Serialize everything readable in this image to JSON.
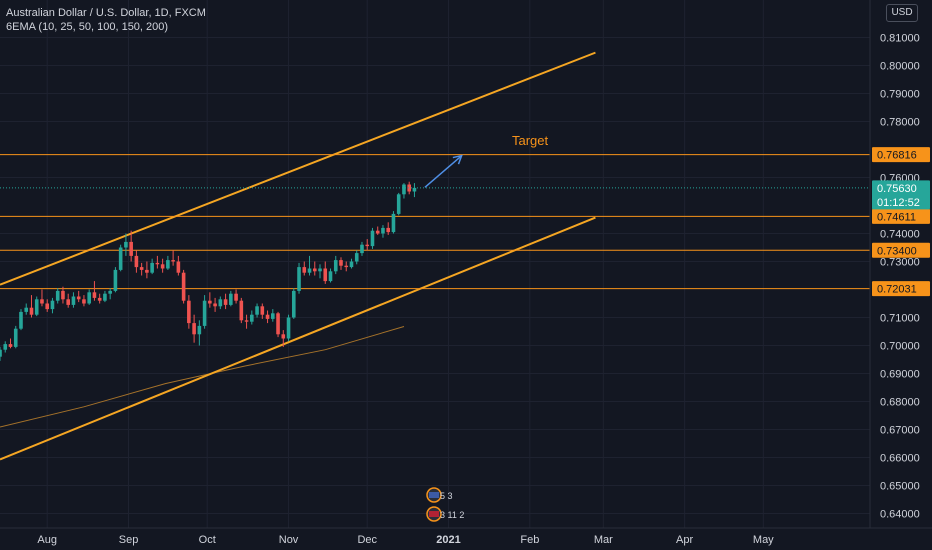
{
  "header": {
    "symbol_title": "Australian Dollar / U.S. Dollar, 1D, FXCM",
    "indicator": "6EMA (10, 25, 50, 100, 150, 200)"
  },
  "currency_button": "USD",
  "annotation_target": "Target",
  "countdown": "01:12:52",
  "events": [
    {
      "icon": "flag-us-icon",
      "count": "5 3"
    },
    {
      "icon": "flag-au-icon",
      "count": "3 11 2"
    }
  ],
  "colors": {
    "background": "#131722",
    "up": "#26a69a",
    "down": "#ef5350",
    "level": "#f7931a",
    "channel": "#f5a623",
    "ema": "#a5722a",
    "arrow": "#4f8fe6",
    "last_price": "#26a69a"
  },
  "chart_data": {
    "type": "candlestick",
    "title": "Australian Dollar / U.S. Dollar, 1D, FXCM",
    "ylim": [
      0.6355,
      0.8205
    ],
    "y_ticks": [
      "0.81000",
      "0.80000",
      "0.79000",
      "0.78000",
      "0.76000",
      "0.74000",
      "0.73000",
      "0.71000",
      "0.70000",
      "0.69000",
      "0.68000",
      "0.67000",
      "0.66000",
      "0.65000",
      "0.64000"
    ],
    "x_ticks": [
      "Aug",
      "Sep",
      "Oct",
      "Nov",
      "Dec",
      "2021",
      "Feb",
      "Mar",
      "Apr",
      "May"
    ],
    "x_tick_dates": [
      "2020-08-01",
      "2020-09-01",
      "2020-10-01",
      "2020-11-01",
      "2020-12-01",
      "2021-01-01",
      "2021-02-01",
      "2021-03-01",
      "2021-04-01",
      "2021-05-01"
    ],
    "x_range": [
      "2020-07-14",
      "2021-05-31"
    ],
    "horizontal_levels": [
      {
        "value": 0.76816,
        "label": "0.76816"
      },
      {
        "value": 0.74611,
        "label": "0.74611"
      },
      {
        "value": 0.734,
        "label": "0.73400"
      },
      {
        "value": 0.72031,
        "label": "0.72031"
      }
    ],
    "last_price": {
      "value": 0.7563,
      "label": "0.75630"
    },
    "channel_lines": [
      {
        "name": "upper",
        "points": [
          {
            "date": "2020-07-14",
            "y": 0.7217
          },
          {
            "date": "2021-02-26",
            "y": 0.8046
          }
        ]
      },
      {
        "name": "lower",
        "points": [
          {
            "date": "2020-07-14",
            "y": 0.6593
          },
          {
            "date": "2021-02-26",
            "y": 0.7457
          }
        ]
      }
    ],
    "target_arrow": {
      "from": {
        "date": "2020-12-23",
        "y": 0.7565
      },
      "to": {
        "date": "2021-01-06",
        "y": 0.7678
      }
    },
    "ema_line": [
      {
        "date": "2020-07-14",
        "y": 0.6709
      },
      {
        "date": "2020-08-15",
        "y": 0.6781
      },
      {
        "date": "2020-09-15",
        "y": 0.6864
      },
      {
        "date": "2020-10-15",
        "y": 0.6926
      },
      {
        "date": "2020-11-15",
        "y": 0.6985
      },
      {
        "date": "2020-12-15",
        "y": 0.7068
      }
    ],
    "candles": [
      {
        "date": "2020-07-14",
        "open": 0.696,
        "high": 0.6995,
        "low": 0.6945,
        "close": 0.6985
      },
      {
        "date": "2020-07-16",
        "open": 0.6985,
        "high": 0.7015,
        "low": 0.6975,
        "close": 0.7005
      },
      {
        "date": "2020-07-18",
        "open": 0.7005,
        "high": 0.7025,
        "low": 0.699,
        "close": 0.6995
      },
      {
        "date": "2020-07-20",
        "open": 0.6995,
        "high": 0.707,
        "low": 0.699,
        "close": 0.706
      },
      {
        "date": "2020-07-22",
        "open": 0.706,
        "high": 0.713,
        "low": 0.7055,
        "close": 0.712
      },
      {
        "date": "2020-07-24",
        "open": 0.712,
        "high": 0.715,
        "low": 0.711,
        "close": 0.7135
      },
      {
        "date": "2020-07-26",
        "open": 0.7135,
        "high": 0.718,
        "low": 0.71,
        "close": 0.711
      },
      {
        "date": "2020-07-28",
        "open": 0.711,
        "high": 0.7175,
        "low": 0.7105,
        "close": 0.7165
      },
      {
        "date": "2020-07-30",
        "open": 0.7165,
        "high": 0.72,
        "low": 0.714,
        "close": 0.715
      },
      {
        "date": "2020-08-01",
        "open": 0.715,
        "high": 0.7165,
        "low": 0.712,
        "close": 0.713
      },
      {
        "date": "2020-08-03",
        "open": 0.713,
        "high": 0.717,
        "low": 0.7115,
        "close": 0.716
      },
      {
        "date": "2020-08-05",
        "open": 0.716,
        "high": 0.7205,
        "low": 0.715,
        "close": 0.7195
      },
      {
        "date": "2020-08-07",
        "open": 0.7195,
        "high": 0.721,
        "low": 0.715,
        "close": 0.7165
      },
      {
        "date": "2020-08-09",
        "open": 0.7165,
        "high": 0.7185,
        "low": 0.7135,
        "close": 0.7145
      },
      {
        "date": "2020-08-11",
        "open": 0.7145,
        "high": 0.719,
        "low": 0.7135,
        "close": 0.7175
      },
      {
        "date": "2020-08-13",
        "open": 0.7175,
        "high": 0.7195,
        "low": 0.7155,
        "close": 0.7165
      },
      {
        "date": "2020-08-15",
        "open": 0.7165,
        "high": 0.718,
        "low": 0.714,
        "close": 0.715
      },
      {
        "date": "2020-08-17",
        "open": 0.715,
        "high": 0.72,
        "low": 0.7145,
        "close": 0.719
      },
      {
        "date": "2020-08-19",
        "open": 0.719,
        "high": 0.723,
        "low": 0.716,
        "close": 0.717
      },
      {
        "date": "2020-08-21",
        "open": 0.717,
        "high": 0.7185,
        "low": 0.715,
        "close": 0.716
      },
      {
        "date": "2020-08-23",
        "open": 0.716,
        "high": 0.7195,
        "low": 0.7155,
        "close": 0.7185
      },
      {
        "date": "2020-08-25",
        "open": 0.7185,
        "high": 0.7205,
        "low": 0.7165,
        "close": 0.7195
      },
      {
        "date": "2020-08-27",
        "open": 0.7195,
        "high": 0.728,
        "low": 0.719,
        "close": 0.727
      },
      {
        "date": "2020-08-29",
        "open": 0.727,
        "high": 0.736,
        "low": 0.7265,
        "close": 0.735
      },
      {
        "date": "2020-08-31",
        "open": 0.735,
        "high": 0.74,
        "low": 0.732,
        "close": 0.737
      },
      {
        "date": "2020-09-02",
        "open": 0.737,
        "high": 0.741,
        "low": 0.73,
        "close": 0.732
      },
      {
        "date": "2020-09-04",
        "open": 0.732,
        "high": 0.734,
        "low": 0.726,
        "close": 0.728
      },
      {
        "date": "2020-09-06",
        "open": 0.728,
        "high": 0.7295,
        "low": 0.725,
        "close": 0.727
      },
      {
        "date": "2020-09-08",
        "open": 0.727,
        "high": 0.73,
        "low": 0.724,
        "close": 0.726
      },
      {
        "date": "2020-09-10",
        "open": 0.726,
        "high": 0.731,
        "low": 0.7255,
        "close": 0.7295
      },
      {
        "date": "2020-09-12",
        "open": 0.7295,
        "high": 0.732,
        "low": 0.7275,
        "close": 0.729
      },
      {
        "date": "2020-09-14",
        "open": 0.729,
        "high": 0.731,
        "low": 0.726,
        "close": 0.7275
      },
      {
        "date": "2020-09-16",
        "open": 0.7275,
        "high": 0.732,
        "low": 0.727,
        "close": 0.7305
      },
      {
        "date": "2020-09-18",
        "open": 0.7305,
        "high": 0.734,
        "low": 0.7285,
        "close": 0.73
      },
      {
        "date": "2020-09-20",
        "open": 0.73,
        "high": 0.732,
        "low": 0.725,
        "close": 0.726
      },
      {
        "date": "2020-09-22",
        "open": 0.726,
        "high": 0.727,
        "low": 0.715,
        "close": 0.716
      },
      {
        "date": "2020-09-24",
        "open": 0.716,
        "high": 0.718,
        "low": 0.706,
        "close": 0.708
      },
      {
        "date": "2020-09-26",
        "open": 0.708,
        "high": 0.711,
        "low": 0.701,
        "close": 0.704
      },
      {
        "date": "2020-09-28",
        "open": 0.704,
        "high": 0.709,
        "low": 0.7,
        "close": 0.707
      },
      {
        "date": "2020-09-30",
        "open": 0.707,
        "high": 0.718,
        "low": 0.706,
        "close": 0.716
      },
      {
        "date": "2020-10-02",
        "open": 0.716,
        "high": 0.719,
        "low": 0.7135,
        "close": 0.715
      },
      {
        "date": "2020-10-04",
        "open": 0.715,
        "high": 0.717,
        "low": 0.712,
        "close": 0.714
      },
      {
        "date": "2020-10-06",
        "open": 0.714,
        "high": 0.7175,
        "low": 0.713,
        "close": 0.7165
      },
      {
        "date": "2020-10-08",
        "open": 0.7165,
        "high": 0.7185,
        "low": 0.713,
        "close": 0.7145
      },
      {
        "date": "2020-10-10",
        "open": 0.7145,
        "high": 0.7195,
        "low": 0.714,
        "close": 0.7185
      },
      {
        "date": "2020-10-12",
        "open": 0.7185,
        "high": 0.72,
        "low": 0.715,
        "close": 0.716
      },
      {
        "date": "2020-10-14",
        "open": 0.716,
        "high": 0.717,
        "low": 0.708,
        "close": 0.709
      },
      {
        "date": "2020-10-16",
        "open": 0.709,
        "high": 0.711,
        "low": 0.706,
        "close": 0.7085
      },
      {
        "date": "2020-10-18",
        "open": 0.7085,
        "high": 0.7125,
        "low": 0.7075,
        "close": 0.711
      },
      {
        "date": "2020-10-20",
        "open": 0.711,
        "high": 0.715,
        "low": 0.71,
        "close": 0.714
      },
      {
        "date": "2020-10-22",
        "open": 0.714,
        "high": 0.715,
        "low": 0.7095,
        "close": 0.711
      },
      {
        "date": "2020-10-24",
        "open": 0.711,
        "high": 0.7125,
        "low": 0.708,
        "close": 0.7095
      },
      {
        "date": "2020-10-26",
        "open": 0.7095,
        "high": 0.713,
        "low": 0.7085,
        "close": 0.7115
      },
      {
        "date": "2020-10-28",
        "open": 0.7115,
        "high": 0.712,
        "low": 0.703,
        "close": 0.704
      },
      {
        "date": "2020-10-30",
        "open": 0.704,
        "high": 0.7055,
        "low": 0.6995,
        "close": 0.7025
      },
      {
        "date": "2020-11-01",
        "open": 0.7025,
        "high": 0.711,
        "low": 0.7015,
        "close": 0.71
      },
      {
        "date": "2020-11-03",
        "open": 0.71,
        "high": 0.7205,
        "low": 0.7095,
        "close": 0.7195
      },
      {
        "date": "2020-11-05",
        "open": 0.7195,
        "high": 0.7295,
        "low": 0.7185,
        "close": 0.728
      },
      {
        "date": "2020-11-07",
        "open": 0.728,
        "high": 0.73,
        "low": 0.725,
        "close": 0.726
      },
      {
        "date": "2020-11-09",
        "open": 0.726,
        "high": 0.732,
        "low": 0.725,
        "close": 0.7275
      },
      {
        "date": "2020-11-11",
        "open": 0.7275,
        "high": 0.73,
        "low": 0.725,
        "close": 0.7265
      },
      {
        "date": "2020-11-13",
        "open": 0.7265,
        "high": 0.729,
        "low": 0.724,
        "close": 0.7275
      },
      {
        "date": "2020-11-15",
        "open": 0.7275,
        "high": 0.73,
        "low": 0.722,
        "close": 0.723
      },
      {
        "date": "2020-11-17",
        "open": 0.723,
        "high": 0.7275,
        "low": 0.7225,
        "close": 0.7265
      },
      {
        "date": "2020-11-19",
        "open": 0.7265,
        "high": 0.732,
        "low": 0.7255,
        "close": 0.7305
      },
      {
        "date": "2020-11-21",
        "open": 0.7305,
        "high": 0.7315,
        "low": 0.727,
        "close": 0.7285
      },
      {
        "date": "2020-11-23",
        "open": 0.7285,
        "high": 0.73,
        "low": 0.7265,
        "close": 0.728
      },
      {
        "date": "2020-11-25",
        "open": 0.728,
        "high": 0.731,
        "low": 0.7275,
        "close": 0.73
      },
      {
        "date": "2020-11-27",
        "open": 0.73,
        "high": 0.734,
        "low": 0.729,
        "close": 0.733
      },
      {
        "date": "2020-11-29",
        "open": 0.733,
        "high": 0.737,
        "low": 0.732,
        "close": 0.736
      },
      {
        "date": "2020-12-01",
        "open": 0.736,
        "high": 0.738,
        "low": 0.734,
        "close": 0.7355
      },
      {
        "date": "2020-12-03",
        "open": 0.7355,
        "high": 0.742,
        "low": 0.7345,
        "close": 0.741
      },
      {
        "date": "2020-12-05",
        "open": 0.741,
        "high": 0.7425,
        "low": 0.7395,
        "close": 0.74
      },
      {
        "date": "2020-12-07",
        "open": 0.74,
        "high": 0.743,
        "low": 0.7385,
        "close": 0.742
      },
      {
        "date": "2020-12-09",
        "open": 0.742,
        "high": 0.744,
        "low": 0.7395,
        "close": 0.7405
      },
      {
        "date": "2020-12-11",
        "open": 0.7405,
        "high": 0.748,
        "low": 0.74,
        "close": 0.747
      },
      {
        "date": "2020-12-13",
        "open": 0.747,
        "high": 0.7545,
        "low": 0.7465,
        "close": 0.754
      },
      {
        "date": "2020-12-15",
        "open": 0.754,
        "high": 0.758,
        "low": 0.7525,
        "close": 0.7575
      },
      {
        "date": "2020-12-17",
        "open": 0.7575,
        "high": 0.7585,
        "low": 0.754,
        "close": 0.755
      },
      {
        "date": "2020-12-19",
        "open": 0.755,
        "high": 0.758,
        "low": 0.753,
        "close": 0.7563
      }
    ]
  }
}
